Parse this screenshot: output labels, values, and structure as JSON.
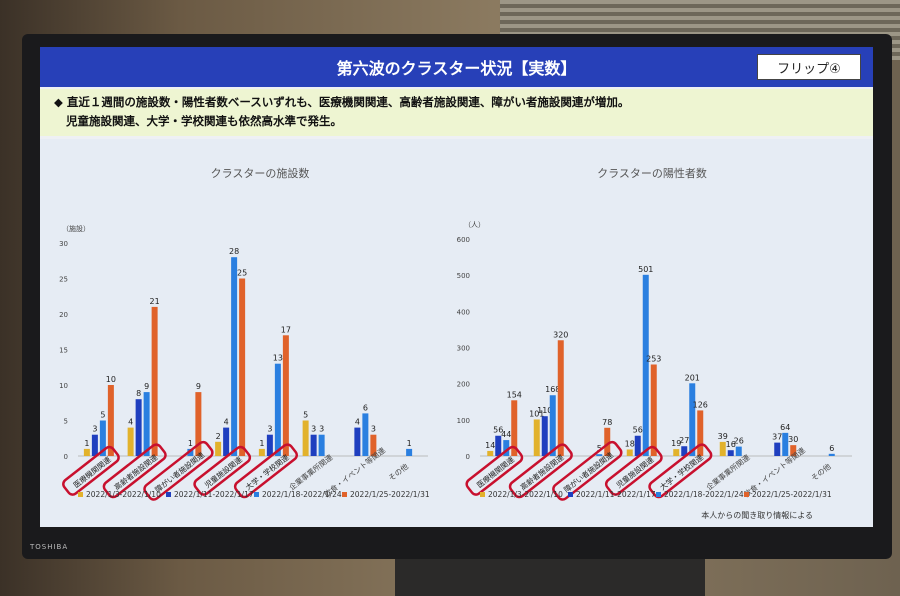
{
  "slide": {
    "title": "第六波のクラスター状況【実数】",
    "flip_label": "フリップ④",
    "note_line1": "◆ 直近１週間の施設数・陽性者数ベースいずれも、医療機関関連、高齢者施設関連、障がい者施設関連が増加。",
    "note_line2": "児童施設関連、大学・学校関連も依然高水準で発生。",
    "source": "本人からの聞き取り情報による",
    "device_brand": "TOSHIBA"
  },
  "colors": {
    "series": [
      "#e2b22c",
      "#1f3fbf",
      "#2a7fe0",
      "#e0622a"
    ],
    "title_bar": "#2740b8",
    "highlight": "#c8102e"
  },
  "chart_data": [
    {
      "type": "bar",
      "title": "クラスターの施設数",
      "ylabel": "（施設）",
      "ylim": [
        0,
        30
      ],
      "yticks": [
        0,
        5,
        10,
        15,
        20,
        25,
        30
      ],
      "categories": [
        "医療機関関連",
        "高齢者施設関連",
        "障がい者施設関連",
        "児童施設関連",
        "大学・学校関連",
        "企業事業所関連",
        "飲食・イベント等関連",
        "その他"
      ],
      "highlighted": [
        true,
        true,
        true,
        true,
        true,
        false,
        false,
        false
      ],
      "series": [
        {
          "name": "2022/1/3-2022/1/10",
          "values": [
            1,
            4,
            null,
            2,
            1,
            5,
            null,
            null
          ]
        },
        {
          "name": "2022/1/11-2022/1/17",
          "values": [
            3,
            8,
            null,
            4,
            3,
            3,
            4,
            null
          ]
        },
        {
          "name": "2022/1/18-2022/1/24",
          "values": [
            5,
            9,
            1,
            28,
            13,
            3,
            6,
            1
          ]
        },
        {
          "name": "2022/1/25-2022/1/31",
          "values": [
            10,
            21,
            9,
            25,
            17,
            null,
            3,
            null
          ]
        }
      ]
    },
    {
      "type": "bar",
      "title": "クラスターの陽性者数",
      "ylabel": "（人）",
      "ylim": [
        0,
        600
      ],
      "yticks": [
        0,
        100,
        200,
        300,
        400,
        500,
        600
      ],
      "categories": [
        "医療機関関連",
        "高齢者施設関連",
        "障がい者施設関連",
        "児童施設関連",
        "大学・学校関連",
        "企業事業所関連",
        "飲食・イベント等関連",
        "その他"
      ],
      "highlighted": [
        true,
        true,
        true,
        true,
        true,
        false,
        false,
        false
      ],
      "series": [
        {
          "name": "2022/1/3-2022/1/10",
          "values": [
            14,
            101,
            null,
            18,
            19,
            39,
            null,
            null
          ]
        },
        {
          "name": "2022/1/11-2022/1/17",
          "values": [
            56,
            110,
            null,
            56,
            27,
            16,
            37,
            null
          ]
        },
        {
          "name": "2022/1/18-2022/1/24",
          "values": [
            44,
            168,
            5,
            501,
            201,
            26,
            64,
            6
          ]
        },
        {
          "name": "2022/1/25-2022/1/31",
          "values": [
            154,
            320,
            78,
            253,
            126,
            null,
            30,
            null
          ]
        }
      ]
    }
  ]
}
